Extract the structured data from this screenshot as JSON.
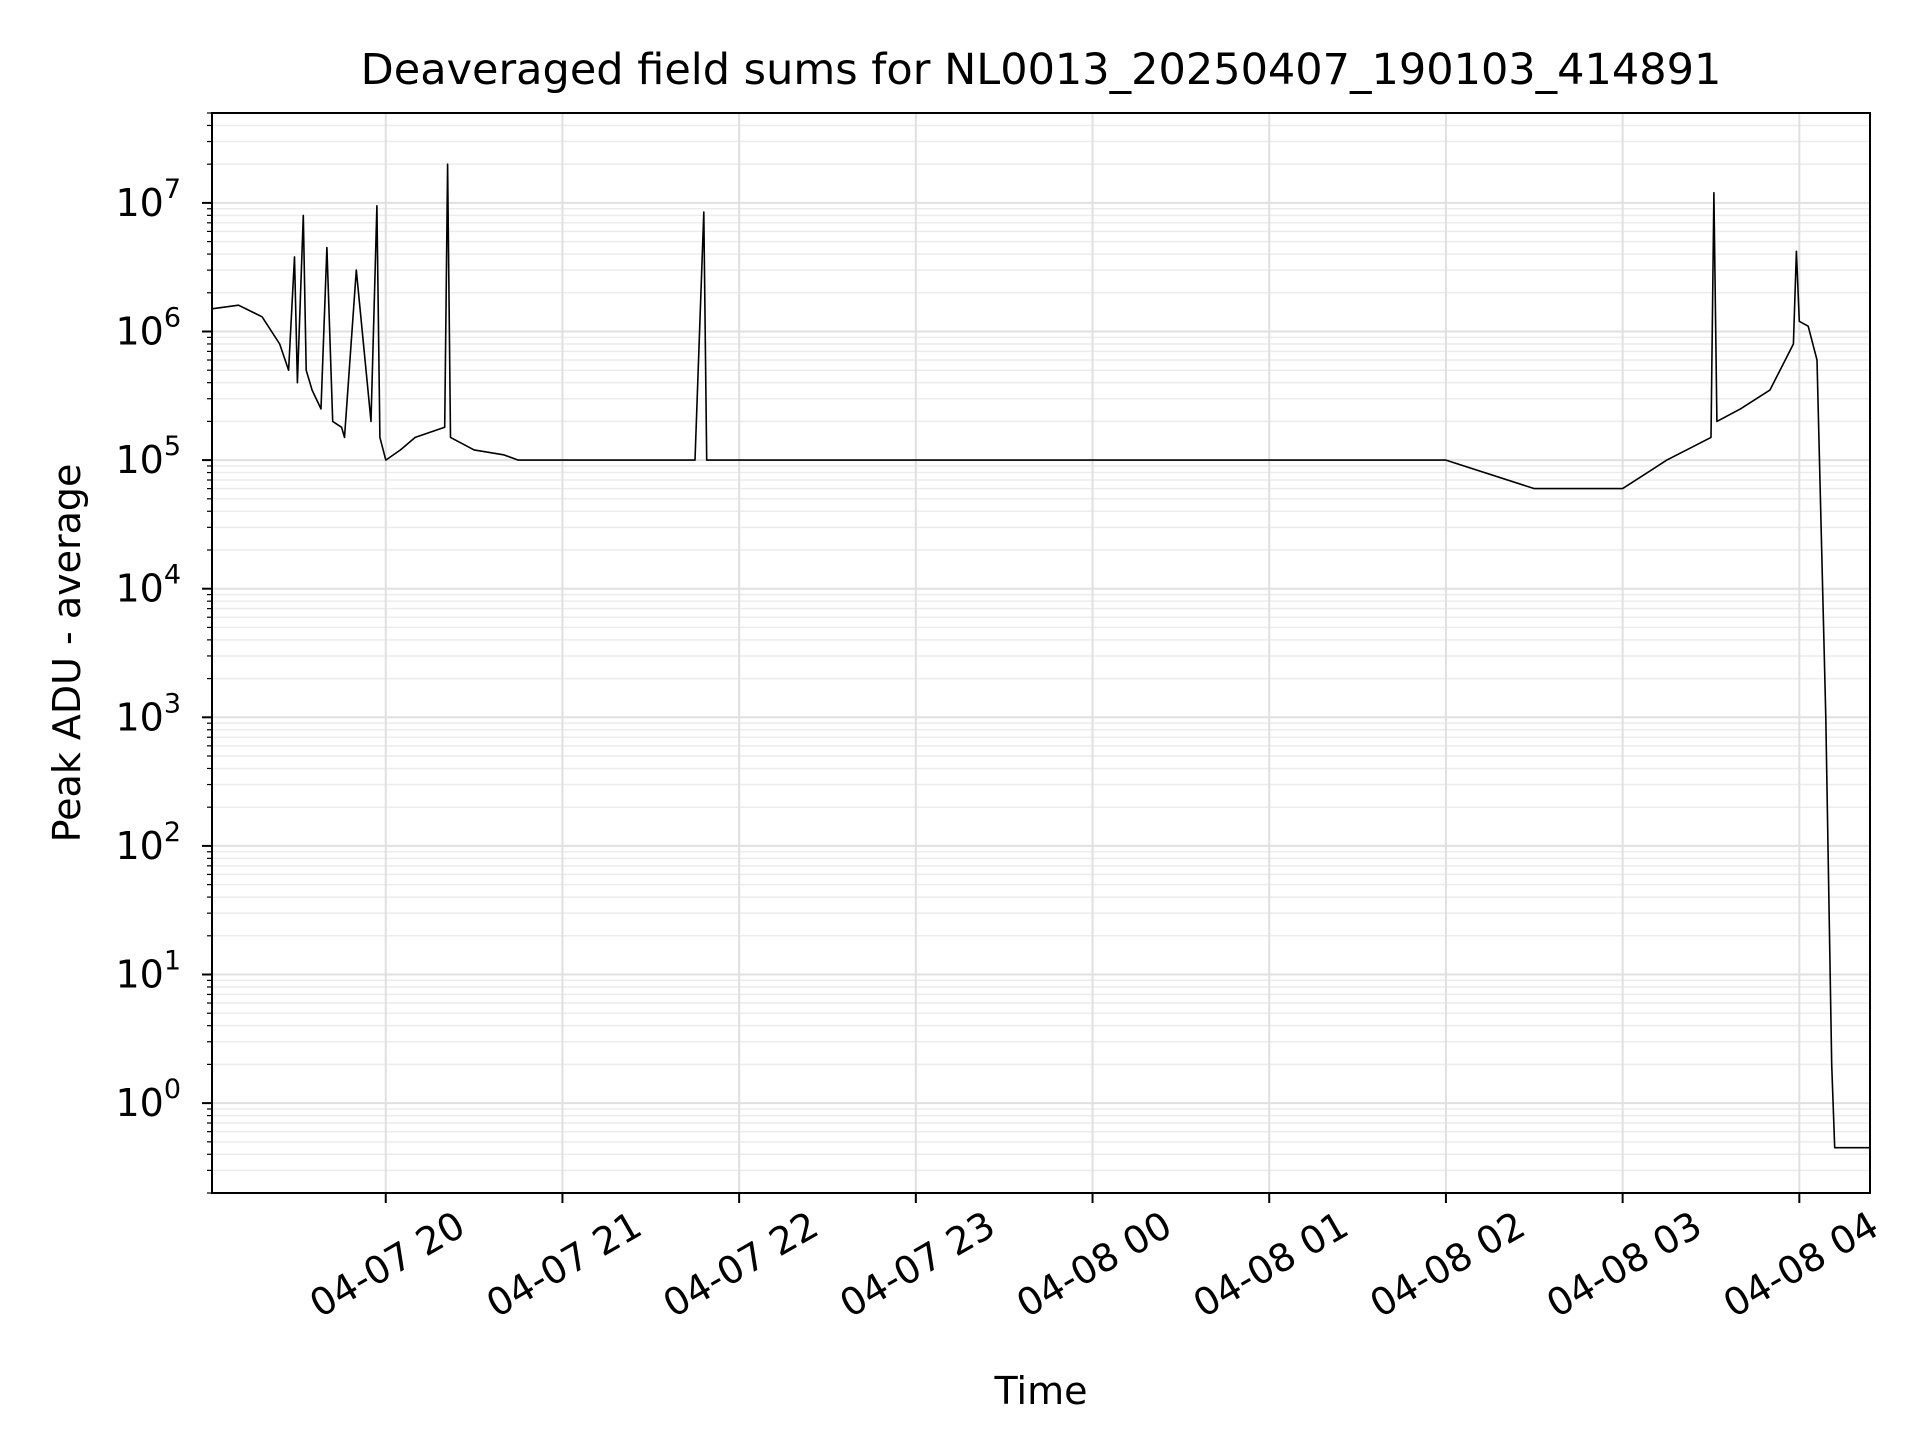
{
  "chart_data": {
    "type": "line",
    "title": "Deaveraged field sums for NL0013_20250407_190103_414891",
    "xlabel": "Time",
    "ylabel": "Peak ADU - average",
    "yscale": "log",
    "grid": true,
    "xlim": [
      "2025-04-07 19:01",
      "2025-04-08 04:24"
    ],
    "ylim": [
      0.2,
      50000000
    ],
    "x_ticks": [
      "04-07 20",
      "04-07 21",
      "04-07 22",
      "04-07 23",
      "04-08 00",
      "04-08 01",
      "04-08 02",
      "04-08 03",
      "04-08 04"
    ],
    "y_ticks": [
      {
        "base": "10",
        "exp": "0"
      },
      {
        "base": "10",
        "exp": "1"
      },
      {
        "base": "10",
        "exp": "2"
      },
      {
        "base": "10",
        "exp": "3"
      },
      {
        "base": "10",
        "exp": "4"
      },
      {
        "base": "10",
        "exp": "5"
      },
      {
        "base": "10",
        "exp": "6"
      },
      {
        "base": "10",
        "exp": "7"
      }
    ],
    "series": [
      {
        "color": "#000000",
        "x": [
          "2025-04-07 19:01",
          "2025-04-07 19:10",
          "2025-04-07 19:18",
          "2025-04-07 19:24",
          "2025-04-07 19:27",
          "2025-04-07 19:29",
          "2025-04-07 19:30",
          "2025-04-07 19:32",
          "2025-04-07 19:33",
          "2025-04-07 19:35",
          "2025-04-07 19:38",
          "2025-04-07 19:40",
          "2025-04-07 19:42",
          "2025-04-07 19:45",
          "2025-04-07 19:46",
          "2025-04-07 19:50",
          "2025-04-07 19:55",
          "2025-04-07 19:57",
          "2025-04-07 19:58",
          "2025-04-07 20:00",
          "2025-04-07 20:05",
          "2025-04-07 20:10",
          "2025-04-07 20:20",
          "2025-04-07 20:21",
          "2025-04-07 20:22",
          "2025-04-07 20:30",
          "2025-04-07 20:40",
          "2025-04-07 20:45",
          "2025-04-07 21:00",
          "2025-04-07 21:15",
          "2025-04-07 21:30",
          "2025-04-07 21:45",
          "2025-04-07 21:48",
          "2025-04-07 21:49",
          "2025-04-07 21:50",
          "2025-04-07 22:00",
          "2025-04-07 22:30",
          "2025-04-07 23:00",
          "2025-04-07 23:30",
          "2025-04-08 00:00",
          "2025-04-08 00:30",
          "2025-04-08 01:00",
          "2025-04-08 01:30",
          "2025-04-08 02:00",
          "2025-04-08 02:30",
          "2025-04-08 03:00",
          "2025-04-08 03:15",
          "2025-04-08 03:30",
          "2025-04-08 03:31",
          "2025-04-08 03:32",
          "2025-04-08 03:40",
          "2025-04-08 03:50",
          "2025-04-08 03:58",
          "2025-04-08 03:59",
          "2025-04-08 04:00",
          "2025-04-08 04:03",
          "2025-04-08 04:06",
          "2025-04-08 04:09",
          "2025-04-08 04:11",
          "2025-04-08 04:12",
          "2025-04-08 04:14",
          "2025-04-08 04:24"
        ],
        "y": [
          1500000,
          1600000,
          1300000,
          800000,
          500000,
          3800000,
          400000,
          8000000,
          500000,
          350000,
          250000,
          4500000,
          200000,
          180000,
          150000,
          3000000,
          200000,
          9500000,
          150000,
          100000,
          120000,
          150000,
          180000,
          20000000,
          150000,
          120000,
          110000,
          100000,
          100000,
          100000,
          100000,
          100000,
          8500000,
          100000,
          100000,
          100000,
          100000,
          100000,
          100000,
          100000,
          100000,
          100000,
          100000,
          100000,
          60000,
          60000,
          100000,
          150000,
          12000000,
          200000,
          250000,
          350000,
          800000,
          4200000,
          1200000,
          1100000,
          600000,
          1000,
          2,
          0.45,
          0.45,
          0.45
        ]
      }
    ]
  }
}
